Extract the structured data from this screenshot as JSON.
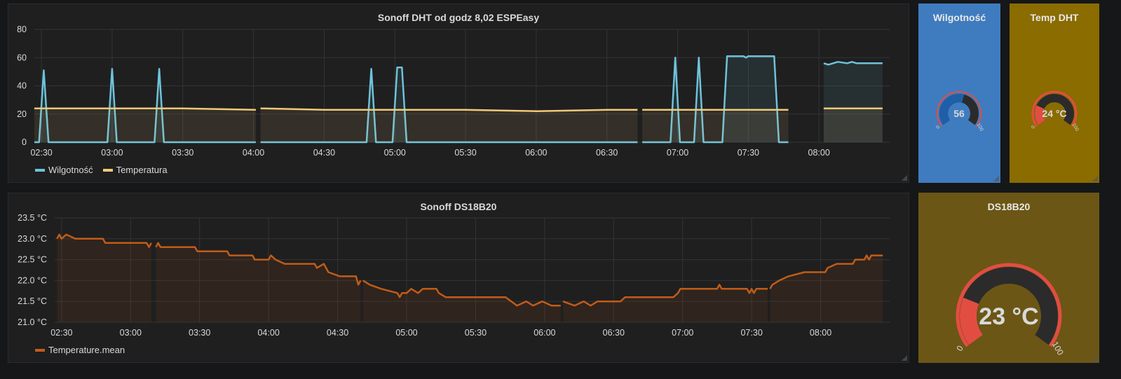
{
  "panels": {
    "dht": {
      "title": "Sonoff DHT od godz 8,02 ESPEasy"
    },
    "ds": {
      "title": "Sonoff DS18B20"
    }
  },
  "gauges": {
    "wilg": {
      "title": "Wilgotność",
      "value_label": "56",
      "min_label": "0",
      "max_label": "100",
      "bg": "#3f7cbf",
      "value": 56
    },
    "temp": {
      "title": "Temp DHT",
      "value_label": "24 °C",
      "min_label": "0",
      "max_label": "100",
      "bg": "#8a6c00",
      "value": 24
    },
    "ds": {
      "title": "DS18B20",
      "value_label": "23 °C",
      "min_label": "0",
      "max_label": "100",
      "bg": "#6b5615",
      "value": 23
    }
  },
  "colors": {
    "humidity": "#6ec3da",
    "temperature": "#f1c977",
    "mean": "#c15c17",
    "gauge_red": "#e24d42"
  },
  "chart_data": [
    {
      "type": "line",
      "title": "Sonoff DHT od godz 8,02 ESPEasy",
      "x_ticks": [
        "02:30",
        "03:00",
        "03:30",
        "04:00",
        "04:30",
        "05:00",
        "05:30",
        "06:00",
        "06:30",
        "07:00",
        "07:30",
        "08:00"
      ],
      "y_ticks": [
        "0",
        "20",
        "40",
        "60",
        "80"
      ],
      "ylim": [
        0,
        80
      ],
      "xlim": [
        "02:27",
        "08:30"
      ],
      "grid": true,
      "legend": "bottom-left",
      "series": [
        {
          "name": "Wilgotność",
          "color": "#6ec3da",
          "segments": [
            [
              [
                "02:27",
                0
              ],
              [
                "02:29",
                0
              ],
              [
                "02:31",
                51
              ],
              [
                "02:33",
                0
              ],
              [
                "02:58",
                0
              ],
              [
                "03:00",
                52
              ],
              [
                "03:02",
                0
              ],
              [
                "03:18",
                0
              ],
              [
                "03:20",
                52
              ],
              [
                "03:22",
                0
              ],
              [
                "04:01",
                0
              ]
            ],
            [
              [
                "04:03",
                0
              ],
              [
                "04:48",
                0
              ],
              [
                "04:50",
                52
              ],
              [
                "04:52",
                0
              ],
              [
                "04:59",
                0
              ],
              [
                "05:01",
                53
              ],
              [
                "05:03",
                53
              ],
              [
                "05:05",
                0
              ],
              [
                "06:43",
                0
              ]
            ],
            [
              [
                "06:45",
                0
              ],
              [
                "06:57",
                0
              ],
              [
                "06:59",
                60
              ],
              [
                "07:01",
                0
              ],
              [
                "07:07",
                0
              ],
              [
                "07:09",
                60
              ],
              [
                "07:11",
                0
              ],
              [
                "07:19",
                0
              ],
              [
                "07:21",
                61
              ],
              [
                "07:28",
                61
              ],
              [
                "07:29",
                60
              ],
              [
                "07:30",
                61
              ],
              [
                "07:41",
                61
              ],
              [
                "07:43",
                0
              ],
              [
                "07:47",
                0
              ]
            ],
            [
              [
                "08:02",
                56
              ],
              [
                "08:04",
                55
              ],
              [
                "08:08",
                57
              ],
              [
                "08:12",
                56
              ],
              [
                "08:14",
                57
              ],
              [
                "08:16",
                56
              ],
              [
                "08:27",
                56
              ]
            ]
          ]
        },
        {
          "name": "Temperatura",
          "color": "#f1c977",
          "segments": [
            [
              [
                "02:27",
                24
              ],
              [
                "03:00",
                24
              ],
              [
                "03:30",
                24
              ],
              [
                "04:01",
                23
              ]
            ],
            [
              [
                "04:03",
                24
              ],
              [
                "04:30",
                23
              ],
              [
                "05:00",
                23
              ],
              [
                "05:30",
                23
              ],
              [
                "06:00",
                22
              ],
              [
                "06:30",
                23
              ],
              [
                "06:43",
                23
              ]
            ],
            [
              [
                "06:45",
                23
              ],
              [
                "07:00",
                23
              ],
              [
                "07:30",
                23
              ],
              [
                "07:47",
                23
              ]
            ],
            [
              [
                "08:02",
                24
              ],
              [
                "08:15",
                24
              ],
              [
                "08:27",
                24
              ]
            ]
          ]
        }
      ]
    },
    {
      "type": "line",
      "title": "Sonoff DS18B20",
      "x_ticks": [
        "02:30",
        "03:00",
        "03:30",
        "04:00",
        "04:30",
        "05:00",
        "05:30",
        "06:00",
        "06:30",
        "07:00",
        "07:30",
        "08:00"
      ],
      "y_ticks": [
        "21.0 °C",
        "21.5 °C",
        "22.0 °C",
        "22.5 °C",
        "23.0 °C",
        "23.5 °C"
      ],
      "ylim": [
        21.0,
        23.5
      ],
      "xlim": [
        "02:27",
        "08:30"
      ],
      "grid": true,
      "legend": "bottom-left",
      "series": [
        {
          "name": "Temperature.mean",
          "color": "#c15c17",
          "segments": [
            [
              [
                "02:28",
                23.0
              ],
              [
                "02:29",
                23.1
              ],
              [
                "02:30",
                23.0
              ],
              [
                "02:32",
                23.1
              ],
              [
                "02:36",
                23.0
              ],
              [
                "02:48",
                23.0
              ],
              [
                "02:49",
                22.9
              ],
              [
                "03:07",
                22.9
              ],
              [
                "03:08",
                22.8
              ],
              [
                "03:09",
                22.9
              ]
            ],
            [
              [
                "03:11",
                22.8
              ],
              [
                "03:12",
                22.9
              ],
              [
                "03:13",
                22.8
              ],
              [
                "03:28",
                22.8
              ],
              [
                "03:29",
                22.7
              ],
              [
                "03:42",
                22.7
              ],
              [
                "03:43",
                22.6
              ],
              [
                "03:53",
                22.6
              ],
              [
                "03:54",
                22.5
              ],
              [
                "04:00",
                22.5
              ],
              [
                "04:01",
                22.6
              ],
              [
                "04:03",
                22.5
              ],
              [
                "04:07",
                22.4
              ],
              [
                "04:20",
                22.4
              ],
              [
                "04:21",
                22.3
              ],
              [
                "04:24",
                22.4
              ],
              [
                "04:26",
                22.2
              ],
              [
                "04:31",
                22.1
              ],
              [
                "04:38",
                22.1
              ],
              [
                "04:39",
                21.9
              ],
              [
                "04:40",
                22.0
              ]
            ],
            [
              [
                "04:41",
                22.0
              ],
              [
                "04:44",
                21.9
              ],
              [
                "04:49",
                21.8
              ],
              [
                "04:56",
                21.7
              ],
              [
                "04:57",
                21.6
              ],
              [
                "04:58",
                21.7
              ],
              [
                "05:00",
                21.7
              ],
              [
                "05:02",
                21.8
              ],
              [
                "05:05",
                21.7
              ],
              [
                "05:07",
                21.8
              ],
              [
                "05:13",
                21.8
              ],
              [
                "05:14",
                21.7
              ],
              [
                "05:17",
                21.6
              ],
              [
                "05:43",
                21.6
              ],
              [
                "05:48",
                21.4
              ],
              [
                "05:52",
                21.5
              ],
              [
                "05:55",
                21.4
              ],
              [
                "05:59",
                21.5
              ],
              [
                "06:03",
                21.4
              ],
              [
                "06:07",
                21.4
              ]
            ],
            [
              [
                "06:08",
                21.5
              ],
              [
                "06:13",
                21.4
              ],
              [
                "06:17",
                21.5
              ],
              [
                "06:20",
                21.4
              ],
              [
                "06:23",
                21.5
              ],
              [
                "06:33",
                21.5
              ],
              [
                "06:35",
                21.6
              ],
              [
                "06:56",
                21.6
              ],
              [
                "06:58",
                21.7
              ],
              [
                "06:59",
                21.8
              ],
              [
                "07:15",
                21.8
              ],
              [
                "07:16",
                21.9
              ],
              [
                "07:17",
                21.8
              ],
              [
                "07:28",
                21.8
              ],
              [
                "07:29",
                21.7
              ],
              [
                "07:30",
                21.8
              ],
              [
                "07:31",
                21.7
              ],
              [
                "07:32",
                21.8
              ],
              [
                "07:37",
                21.8
              ]
            ],
            [
              [
                "07:38",
                21.8
              ],
              [
                "07:39",
                21.9
              ],
              [
                "07:42",
                22.0
              ],
              [
                "07:46",
                22.1
              ],
              [
                "07:53",
                22.2
              ],
              [
                "08:02",
                22.2
              ],
              [
                "08:03",
                22.3
              ],
              [
                "08:07",
                22.4
              ],
              [
                "08:14",
                22.4
              ],
              [
                "08:15",
                22.5
              ],
              [
                "08:19",
                22.5
              ],
              [
                "08:20",
                22.6
              ],
              [
                "08:21",
                22.5
              ],
              [
                "08:22",
                22.6
              ],
              [
                "08:27",
                22.6
              ]
            ]
          ]
        }
      ]
    }
  ]
}
